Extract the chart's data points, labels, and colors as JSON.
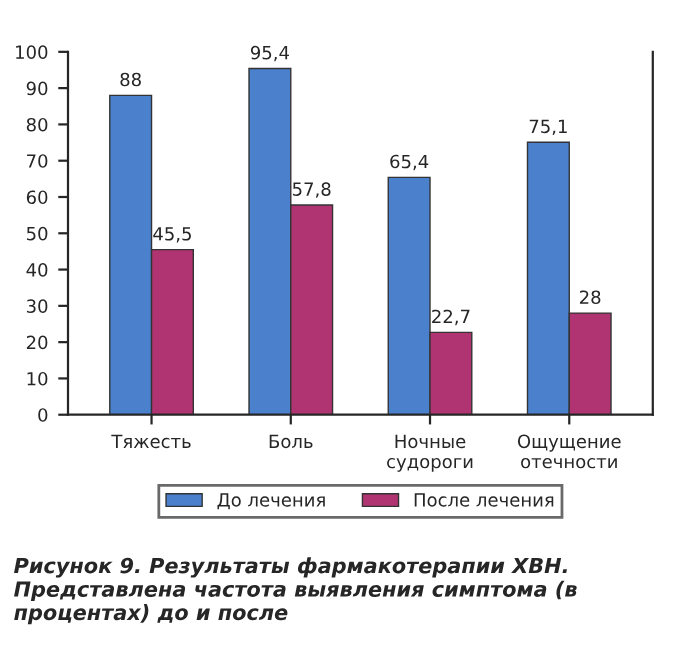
{
  "chart_data": {
    "type": "bar",
    "categories": [
      "Тяжесть",
      "Боль",
      "Ночные судороги",
      "Ощущение отечности"
    ],
    "series": [
      {
        "name": "До лечения",
        "color": "#4a80cc",
        "values": [
          88,
          95.4,
          65.4,
          75.1
        ],
        "value_labels": [
          "88",
          "95,4",
          "65,4",
          "75,1"
        ]
      },
      {
        "name": "После лечения",
        "color": "#b03472",
        "values": [
          45.5,
          57.8,
          22.7,
          28
        ],
        "value_labels": [
          "45,5",
          "57,8",
          "22,7",
          "28"
        ]
      }
    ],
    "ylim": [
      0,
      100
    ],
    "yticks": [
      0,
      10,
      20,
      30,
      40,
      50,
      60,
      70,
      80,
      90,
      100
    ],
    "grid": false,
    "legend": "bottom",
    "annotations": [
      "Рисунок 9. Результаты фармакотерапии ХВН. Представлена частота выявления симптома (в процентах) до и после"
    ]
  }
}
